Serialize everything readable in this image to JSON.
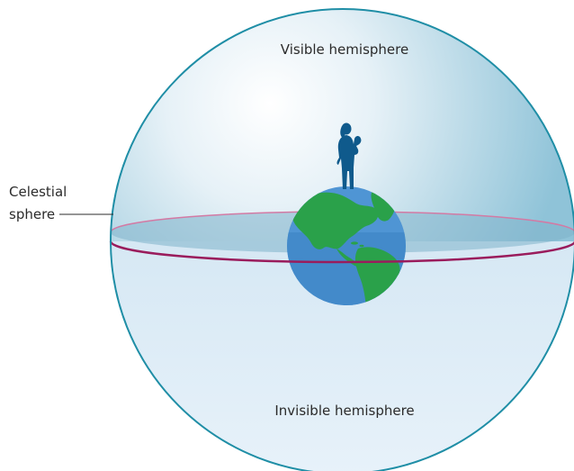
{
  "labels": {
    "top": "Visible hemisphere",
    "bottom": "Invisible hemisphere",
    "side_line1": "Celestial",
    "side_line2": "sphere"
  },
  "colors": {
    "sphere_outline": "#1f8ea6",
    "horizon_front": "#9a1c5c",
    "horizon_back": "#d37aa4",
    "ocean": "#4f95d4",
    "land": "#2aa14a",
    "figure": "#0f5a8c",
    "lower_fill": "#e4eff8"
  },
  "icons": {
    "earth": "earth-globe-icon",
    "person": "person-silhouette-icon"
  }
}
